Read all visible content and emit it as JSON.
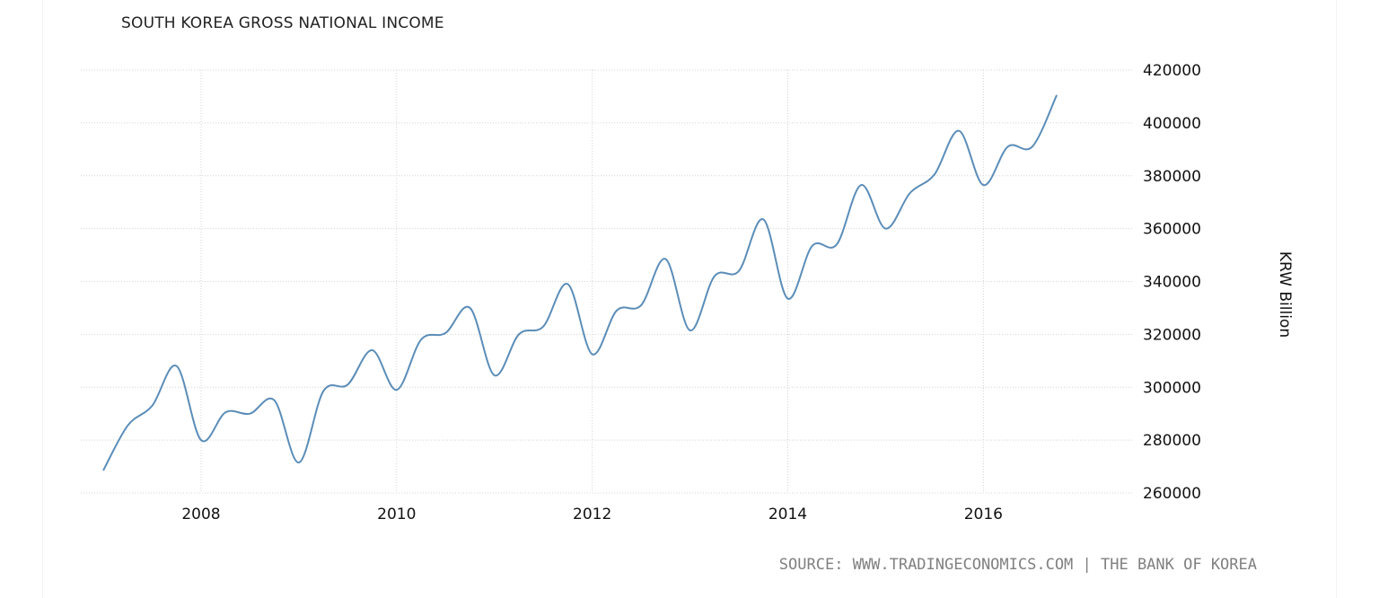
{
  "chart_data": {
    "type": "line",
    "title": "SOUTH KOREA GROSS NATIONAL INCOME",
    "xlabel": "",
    "ylabel": "KRW Billion",
    "source": "SOURCE: WWW.TRADINGECONOMICS.COM | THE BANK OF KOREA",
    "ylim": [
      260000,
      420000
    ],
    "xlim": [
      2006.77,
      2017.53
    ],
    "y_ticks": [
      "260000",
      "280000",
      "300000",
      "320000",
      "340000",
      "360000",
      "380000",
      "400000",
      "420000"
    ],
    "x_ticks": [
      "2008",
      "2010",
      "2012",
      "2014",
      "2016"
    ],
    "grid": true,
    "line_color": "#5b8db8",
    "series": [
      {
        "x": [
          2007.0,
          2007.25,
          2007.5,
          2007.75,
          2008.0,
          2008.25,
          2008.5,
          2008.75,
          2009.0,
          2009.25,
          2009.5,
          2009.75,
          2010.0,
          2010.25,
          2010.5,
          2010.75,
          2011.0,
          2011.25,
          2011.5,
          2011.75,
          2012.0,
          2012.25,
          2012.5,
          2012.75,
          2013.0,
          2013.25,
          2013.5,
          2013.75,
          2014.0,
          2014.25,
          2014.5,
          2014.75,
          2015.0,
          2015.25,
          2015.5,
          2015.75,
          2016.0,
          2016.25,
          2016.5,
          2016.75,
          2017.0
        ],
        "values": [
          268500,
          285500,
          293000,
          308000,
          280000,
          290500,
          290000,
          295000,
          271500,
          298500,
          301000,
          314000,
          299000,
          318000,
          320500,
          330000,
          304500,
          320000,
          323000,
          339000,
          312500,
          329000,
          331000,
          348500,
          321500,
          342000,
          344000,
          363500,
          333500,
          353500,
          354000,
          376500,
          360000,
          373500,
          380500,
          397000,
          376500,
          391000,
          391000,
          410500,
          null
        ]
      }
    ]
  }
}
